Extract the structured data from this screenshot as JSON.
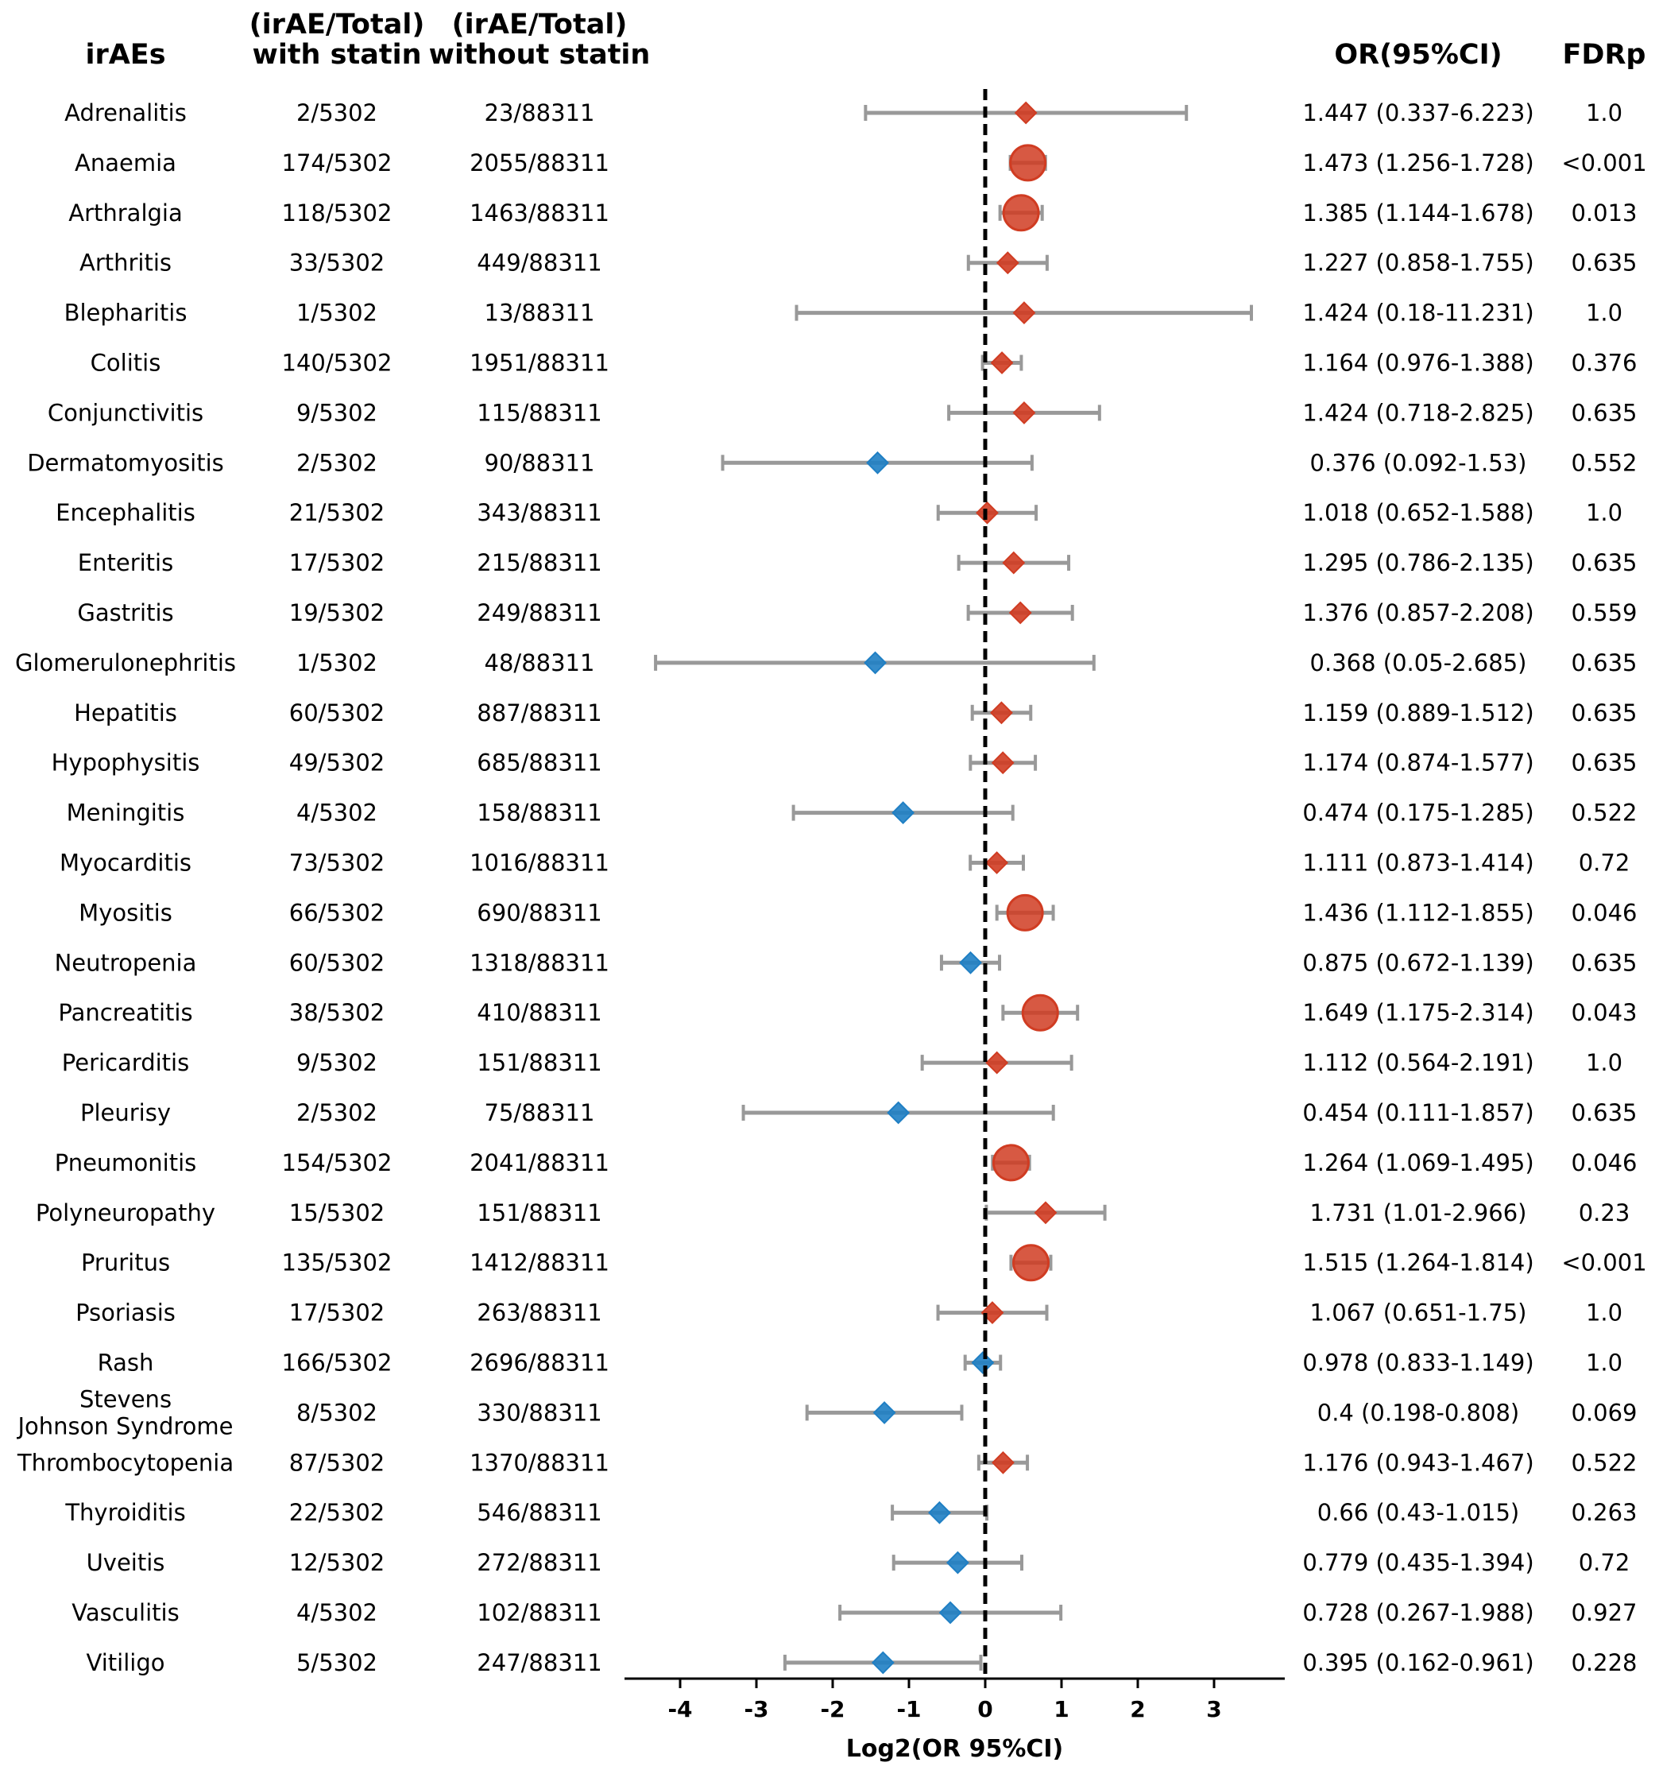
{
  "headers": {
    "name": "irAEs",
    "with_statin_line1": "(irAE/Total)",
    "with_statin_line2": "with statin",
    "without_statin_line1": "(irAE/Total)",
    "without_statin_line2": "without statin",
    "or": "OR(95%CI)",
    "fdr": "FDRp"
  },
  "colors": {
    "significant": "#d03c22",
    "increased": "#d03c22",
    "decreased": "#1f7fc4",
    "ci_line": "#999999",
    "ref_line": "#000000"
  },
  "chart_data": {
    "type": "forest",
    "xlabel": "Log2(OR 95%CI)",
    "xlim": [
      -4.7,
      3.8
    ],
    "xticks": [
      -4,
      -3,
      -2,
      -1,
      0,
      1,
      2,
      3
    ],
    "xtick_labels": [
      "-4",
      "-3",
      "-2",
      "-1",
      "0",
      "1",
      "2",
      "3"
    ],
    "reference_line": 0,
    "rows": [
      {
        "name": "Adrenalitis",
        "name_lines": [
          "Adrenalitis"
        ],
        "with_statin": "2/5302",
        "without_statin": "23/88311",
        "or": 1.447,
        "lower": 0.337,
        "upper": 6.223,
        "or_text": "1.447 (0.337-6.223)",
        "fdr_text": "1.0",
        "significant": false
      },
      {
        "name": "Anaemia",
        "name_lines": [
          "Anaemia"
        ],
        "with_statin": "174/5302",
        "without_statin": "2055/88311",
        "or": 1.473,
        "lower": 1.256,
        "upper": 1.728,
        "or_text": "1.473 (1.256-1.728)",
        "fdr_text": "<0.001",
        "significant": true
      },
      {
        "name": "Arthralgia",
        "name_lines": [
          "Arthralgia"
        ],
        "with_statin": "118/5302",
        "without_statin": "1463/88311",
        "or": 1.385,
        "lower": 1.144,
        "upper": 1.678,
        "or_text": "1.385 (1.144-1.678)",
        "fdr_text": "0.013",
        "significant": true
      },
      {
        "name": "Arthritis",
        "name_lines": [
          "Arthritis"
        ],
        "with_statin": "33/5302",
        "without_statin": "449/88311",
        "or": 1.227,
        "lower": 0.858,
        "upper": 1.755,
        "or_text": "1.227 (0.858-1.755)",
        "fdr_text": "0.635",
        "significant": false
      },
      {
        "name": "Blepharitis",
        "name_lines": [
          "Blepharitis"
        ],
        "with_statin": "1/5302",
        "without_statin": "13/88311",
        "or": 1.424,
        "lower": 0.18,
        "upper": 11.231,
        "or_text": "1.424 (0.18-11.231)",
        "fdr_text": "1.0",
        "significant": false
      },
      {
        "name": "Colitis",
        "name_lines": [
          "Colitis"
        ],
        "with_statin": "140/5302",
        "without_statin": "1951/88311",
        "or": 1.164,
        "lower": 0.976,
        "upper": 1.388,
        "or_text": "1.164 (0.976-1.388)",
        "fdr_text": "0.376",
        "significant": false
      },
      {
        "name": "Conjunctivitis",
        "name_lines": [
          "Conjunctivitis"
        ],
        "with_statin": "9/5302",
        "without_statin": "115/88311",
        "or": 1.424,
        "lower": 0.718,
        "upper": 2.825,
        "or_text": "1.424 (0.718-2.825)",
        "fdr_text": "0.635",
        "significant": false
      },
      {
        "name": "Dermatomyositis",
        "name_lines": [
          "Dermatomyositis"
        ],
        "with_statin": "2/5302",
        "without_statin": "90/88311",
        "or": 0.376,
        "lower": 0.092,
        "upper": 1.53,
        "or_text": "0.376 (0.092-1.53)",
        "fdr_text": "0.552",
        "significant": false
      },
      {
        "name": "Encephalitis",
        "name_lines": [
          "Encephalitis"
        ],
        "with_statin": "21/5302",
        "without_statin": "343/88311",
        "or": 1.018,
        "lower": 0.652,
        "upper": 1.588,
        "or_text": "1.018 (0.652-1.588)",
        "fdr_text": "1.0",
        "significant": false
      },
      {
        "name": "Enteritis",
        "name_lines": [
          "Enteritis"
        ],
        "with_statin": "17/5302",
        "without_statin": "215/88311",
        "or": 1.295,
        "lower": 0.786,
        "upper": 2.135,
        "or_text": "1.295 (0.786-2.135)",
        "fdr_text": "0.635",
        "significant": false
      },
      {
        "name": "Gastritis",
        "name_lines": [
          "Gastritis"
        ],
        "with_statin": "19/5302",
        "without_statin": "249/88311",
        "or": 1.376,
        "lower": 0.857,
        "upper": 2.208,
        "or_text": "1.376 (0.857-2.208)",
        "fdr_text": "0.559",
        "significant": false
      },
      {
        "name": "Glomerulonephritis",
        "name_lines": [
          "Glomerulonephritis"
        ],
        "with_statin": "1/5302",
        "without_statin": "48/88311",
        "or": 0.368,
        "lower": 0.05,
        "upper": 2.685,
        "or_text": "0.368 (0.05-2.685)",
        "fdr_text": "0.635",
        "significant": false
      },
      {
        "name": "Hepatitis",
        "name_lines": [
          "Hepatitis"
        ],
        "with_statin": "60/5302",
        "without_statin": "887/88311",
        "or": 1.159,
        "lower": 0.889,
        "upper": 1.512,
        "or_text": "1.159 (0.889-1.512)",
        "fdr_text": "0.635",
        "significant": false
      },
      {
        "name": "Hypophysitis",
        "name_lines": [
          "Hypophysitis"
        ],
        "with_statin": "49/5302",
        "without_statin": "685/88311",
        "or": 1.174,
        "lower": 0.874,
        "upper": 1.577,
        "or_text": "1.174 (0.874-1.577)",
        "fdr_text": "0.635",
        "significant": false
      },
      {
        "name": "Meningitis",
        "name_lines": [
          "Meningitis"
        ],
        "with_statin": "4/5302",
        "without_statin": "158/88311",
        "or": 0.474,
        "lower": 0.175,
        "upper": 1.285,
        "or_text": "0.474 (0.175-1.285)",
        "fdr_text": "0.522",
        "significant": false
      },
      {
        "name": "Myocarditis",
        "name_lines": [
          "Myocarditis"
        ],
        "with_statin": "73/5302",
        "without_statin": "1016/88311",
        "or": 1.111,
        "lower": 0.873,
        "upper": 1.414,
        "or_text": "1.111 (0.873-1.414)",
        "fdr_text": "0.72",
        "significant": false
      },
      {
        "name": "Myositis",
        "name_lines": [
          "Myositis"
        ],
        "with_statin": "66/5302",
        "without_statin": "690/88311",
        "or": 1.436,
        "lower": 1.112,
        "upper": 1.855,
        "or_text": "1.436 (1.112-1.855)",
        "fdr_text": "0.046",
        "significant": true
      },
      {
        "name": "Neutropenia",
        "name_lines": [
          "Neutropenia"
        ],
        "with_statin": "60/5302",
        "without_statin": "1318/88311",
        "or": 0.875,
        "lower": 0.672,
        "upper": 1.139,
        "or_text": "0.875 (0.672-1.139)",
        "fdr_text": "0.635",
        "significant": false
      },
      {
        "name": "Pancreatitis",
        "name_lines": [
          "Pancreatitis"
        ],
        "with_statin": "38/5302",
        "without_statin": "410/88311",
        "or": 1.649,
        "lower": 1.175,
        "upper": 2.314,
        "or_text": "1.649 (1.175-2.314)",
        "fdr_text": "0.043",
        "significant": true
      },
      {
        "name": "Pericarditis",
        "name_lines": [
          "Pericarditis"
        ],
        "with_statin": "9/5302",
        "without_statin": "151/88311",
        "or": 1.112,
        "lower": 0.564,
        "upper": 2.191,
        "or_text": "1.112 (0.564-2.191)",
        "fdr_text": "1.0",
        "significant": false
      },
      {
        "name": "Pleurisy",
        "name_lines": [
          "Pleurisy"
        ],
        "with_statin": "2/5302",
        "without_statin": "75/88311",
        "or": 0.454,
        "lower": 0.111,
        "upper": 1.857,
        "or_text": "0.454 (0.111-1.857)",
        "fdr_text": "0.635",
        "significant": false
      },
      {
        "name": "Pneumonitis",
        "name_lines": [
          "Pneumonitis"
        ],
        "with_statin": "154/5302",
        "without_statin": "2041/88311",
        "or": 1.264,
        "lower": 1.069,
        "upper": 1.495,
        "or_text": "1.264 (1.069-1.495)",
        "fdr_text": "0.046",
        "significant": true
      },
      {
        "name": "Polyneuropathy",
        "name_lines": [
          "Polyneuropathy"
        ],
        "with_statin": "15/5302",
        "without_statin": "151/88311",
        "or": 1.731,
        "lower": 1.01,
        "upper": 2.966,
        "or_text": "1.731 (1.01-2.966)",
        "fdr_text": "0.23",
        "significant": false
      },
      {
        "name": "Pruritus",
        "name_lines": [
          "Pruritus"
        ],
        "with_statin": "135/5302",
        "without_statin": "1412/88311",
        "or": 1.515,
        "lower": 1.264,
        "upper": 1.814,
        "or_text": "1.515 (1.264-1.814)",
        "fdr_text": "<0.001",
        "significant": true
      },
      {
        "name": "Psoriasis",
        "name_lines": [
          "Psoriasis"
        ],
        "with_statin": "17/5302",
        "without_statin": "263/88311",
        "or": 1.067,
        "lower": 0.651,
        "upper": 1.75,
        "or_text": "1.067 (0.651-1.75)",
        "fdr_text": "1.0",
        "significant": false
      },
      {
        "name": "Rash",
        "name_lines": [
          "Rash"
        ],
        "with_statin": "166/5302",
        "without_statin": "2696/88311",
        "or": 0.978,
        "lower": 0.833,
        "upper": 1.149,
        "or_text": "0.978 (0.833-1.149)",
        "fdr_text": "1.0",
        "significant": false
      },
      {
        "name": "Stevens Johnson Syndrome",
        "name_lines": [
          "Stevens",
          "Johnson Syndrome"
        ],
        "with_statin": "8/5302",
        "without_statin": "330/88311",
        "or": 0.4,
        "lower": 0.198,
        "upper": 0.808,
        "or_text": "0.4 (0.198-0.808)",
        "fdr_text": "0.069",
        "significant": false
      },
      {
        "name": "Thrombocytopenia",
        "name_lines": [
          "Thrombocytopenia"
        ],
        "with_statin": "87/5302",
        "without_statin": "1370/88311",
        "or": 1.176,
        "lower": 0.943,
        "upper": 1.467,
        "or_text": "1.176 (0.943-1.467)",
        "fdr_text": "0.522",
        "significant": false
      },
      {
        "name": "Thyroiditis",
        "name_lines": [
          "Thyroiditis"
        ],
        "with_statin": "22/5302",
        "without_statin": "546/88311",
        "or": 0.66,
        "lower": 0.43,
        "upper": 1.015,
        "or_text": "0.66 (0.43-1.015)",
        "fdr_text": "0.263",
        "significant": false
      },
      {
        "name": "Uveitis",
        "name_lines": [
          "Uveitis"
        ],
        "with_statin": "12/5302",
        "without_statin": "272/88311",
        "or": 0.779,
        "lower": 0.435,
        "upper": 1.394,
        "or_text": "0.779 (0.435-1.394)",
        "fdr_text": "0.72",
        "significant": false
      },
      {
        "name": "Vasculitis",
        "name_lines": [
          "Vasculitis"
        ],
        "with_statin": "4/5302",
        "without_statin": "102/88311",
        "or": 0.728,
        "lower": 0.267,
        "upper": 1.988,
        "or_text": "0.728 (0.267-1.988)",
        "fdr_text": "0.927",
        "significant": false
      },
      {
        "name": "Vitiligo",
        "name_lines": [
          "Vitiligo"
        ],
        "with_statin": "5/5302",
        "without_statin": "247/88311",
        "or": 0.395,
        "lower": 0.162,
        "upper": 0.961,
        "or_text": "0.395 (0.162-0.961)",
        "fdr_text": "0.228",
        "significant": false
      }
    ]
  }
}
